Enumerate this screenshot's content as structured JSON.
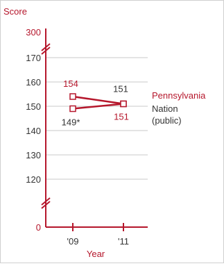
{
  "chart_data": {
    "type": "line",
    "ylabel": "Score",
    "xlabel": "Year",
    "x": [
      "'09",
      "'11"
    ],
    "y_ticks": [
      0,
      120,
      130,
      140,
      150,
      160,
      170,
      300
    ],
    "y_tick_labels": [
      "0",
      "120",
      "130",
      "140",
      "150",
      "160",
      "170",
      "300"
    ],
    "ylim": [
      120,
      170
    ],
    "axis_breaks": [
      "0-120",
      "170-300"
    ],
    "grid": "horizontal",
    "series": [
      {
        "name": "Pennsylvania",
        "values": [
          154,
          151
        ],
        "value_labels": [
          "154",
          "151"
        ],
        "color": "#b5162b"
      },
      {
        "name": "Nation (public)",
        "values": [
          149,
          151
        ],
        "value_labels": [
          "149*",
          "151"
        ],
        "color": "#b5162b",
        "label_color": "#333333"
      }
    ]
  },
  "colors": {
    "accent": "#b5162b",
    "text": "#333333",
    "grid": "#c8c8c8",
    "frame": "#cfcfcf"
  }
}
